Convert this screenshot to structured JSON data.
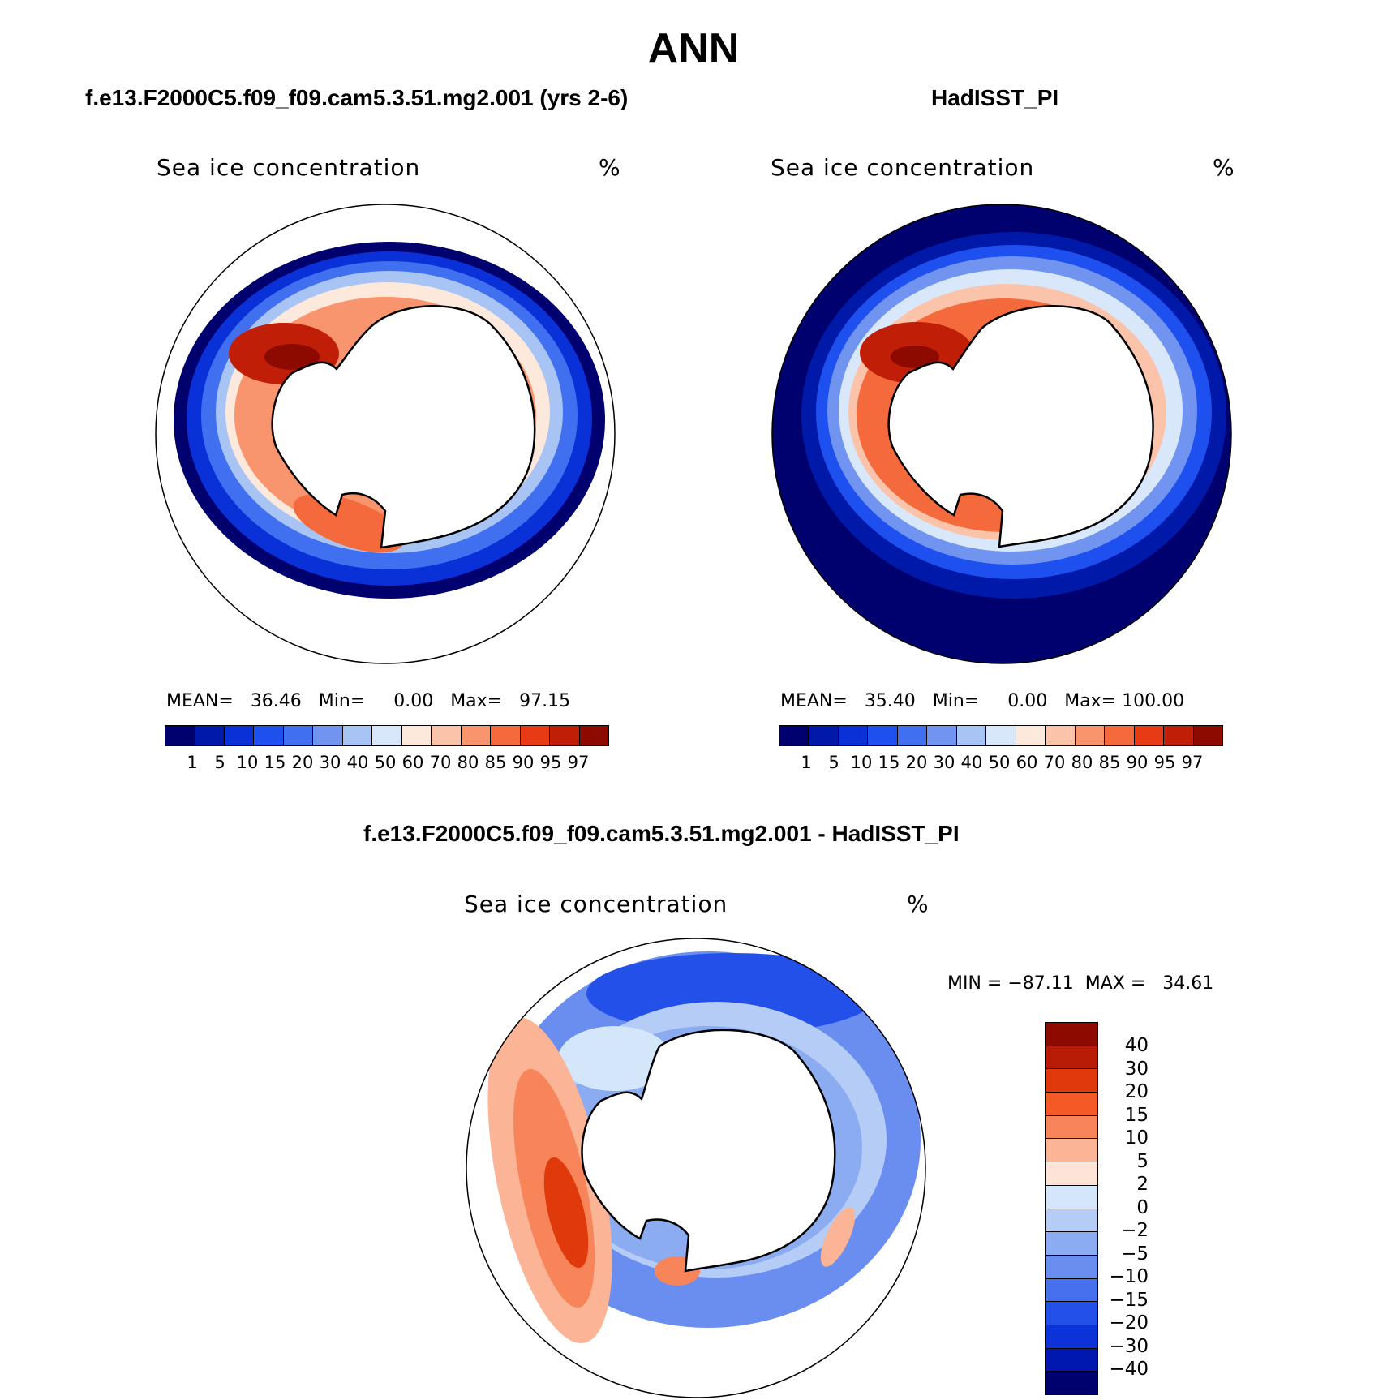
{
  "title": "ANN",
  "panels": [
    {
      "subtitle": "f.e13.F2000C5.f09_f09.cam5.3.51.mg2.001 (yrs 2-6)",
      "plot_title": "Sea ice concentration",
      "units": "%",
      "stats": {
        "mean_label": "MEAN=",
        "mean": "36.46",
        "min_label": "Min=",
        "min": "0.00",
        "max_label": "Max=",
        "max": "97.15"
      }
    },
    {
      "subtitle": "HadISST_PI",
      "plot_title": "Sea ice concentration",
      "units": "%",
      "stats": {
        "mean_label": "MEAN=",
        "mean": "35.40",
        "min_label": "Min=",
        "min": "0.00",
        "max_label": "Max=",
        "max": "100.00"
      }
    }
  ],
  "colorbar": {
    "levels": [
      "1",
      "5",
      "10",
      "15",
      "20",
      "30",
      "40",
      "50",
      "60",
      "70",
      "80",
      "85",
      "90",
      "95",
      "97"
    ],
    "colors": [
      "#00006e",
      "#0019a8",
      "#0a30d8",
      "#1e50f0",
      "#4070f0",
      "#7094f0",
      "#a8c4f5",
      "#d8e8fa",
      "#fde8dc",
      "#fbc4aa",
      "#f9956e",
      "#f56a3c",
      "#e83a14",
      "#c01e06",
      "#8c0a00"
    ]
  },
  "difference": {
    "subtitle": "f.e13.F2000C5.f09_f09.cam5.3.51.mg2.001 - HadISST_PI",
    "plot_title": "Sea ice concentration",
    "units": "%",
    "min_label": "MIN =",
    "min": "−87.11",
    "max_label": "MAX =",
    "max": "34.61",
    "levels": [
      "40",
      "30",
      "20",
      "15",
      "10",
      "5",
      "2",
      "0",
      "−2",
      "−5",
      "−10",
      "−15",
      "−20",
      "−30",
      "−40"
    ],
    "colors": [
      "#8c0a00",
      "#b81c06",
      "#e03a0c",
      "#f55a26",
      "#f8845a",
      "#fbb495",
      "#fde4d6",
      "#d4e6fa",
      "#b4ccf6",
      "#8cacf2",
      "#6a8ef0",
      "#4670ee",
      "#2450ea",
      "#0c32d8",
      "#0018b0",
      "#00006e"
    ]
  }
}
